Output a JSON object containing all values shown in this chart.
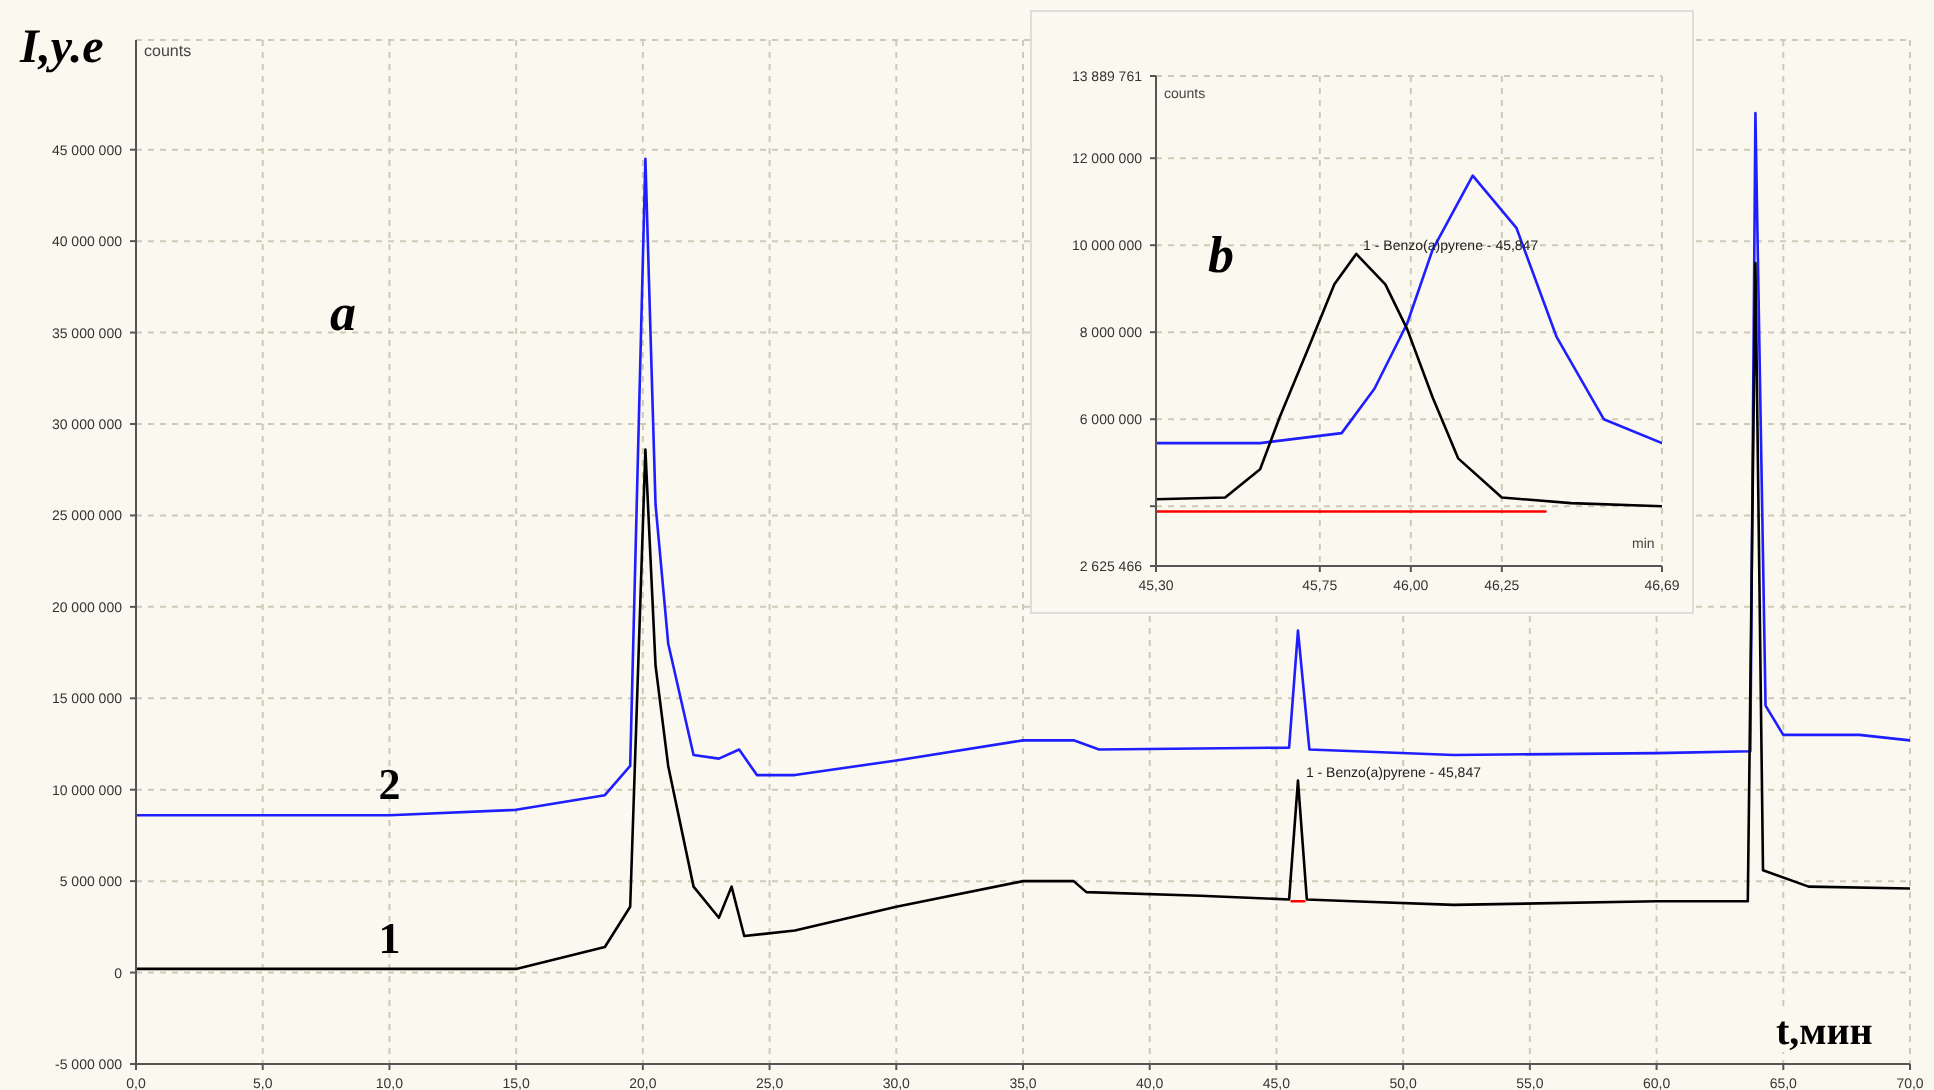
{
  "chart_data": [
    {
      "type": "line",
      "ylabel": "I,y.e",
      "xlabel": "t,мин",
      "xlim": [
        0,
        70
      ],
      "xticks": [
        {
          "value": 0,
          "label": "0,0"
        },
        {
          "value": 5,
          "label": "5,0"
        },
        {
          "value": 10,
          "label": "10,0"
        },
        {
          "value": 15,
          "label": "15,0"
        },
        {
          "value": 20,
          "label": "20,0"
        },
        {
          "value": 25,
          "label": "25,0"
        },
        {
          "value": 30,
          "label": "30,0"
        },
        {
          "value": 35,
          "label": "35,0"
        },
        {
          "value": 40,
          "label": "40,0"
        },
        {
          "value": 45,
          "label": "45,0"
        },
        {
          "value": 50,
          "label": "50,0"
        },
        {
          "value": 55,
          "label": "55,0"
        },
        {
          "value": 60,
          "label": "60,0"
        },
        {
          "value": 65,
          "label": "65,0"
        },
        {
          "value": 70,
          "label": "70,0"
        }
      ],
      "ylim": [
        -5000000,
        51000000
      ],
      "yticks": [
        {
          "value": -5000000,
          "label": "-5 000 000"
        },
        {
          "value": 0,
          "label": "0"
        },
        {
          "value": 5000000,
          "label": "5 000 000"
        },
        {
          "value": 10000000,
          "label": "10 000 000"
        },
        {
          "value": 15000000,
          "label": "15 000 000"
        },
        {
          "value": 20000000,
          "label": "20 000 000"
        },
        {
          "value": 25000000,
          "label": "25 000 000"
        },
        {
          "value": 30000000,
          "label": "30 000 000"
        },
        {
          "value": 35000000,
          "label": "35 000 000"
        },
        {
          "value": 40000000,
          "label": "40 000 000"
        },
        {
          "value": 45000000,
          "label": "45 000 000"
        }
      ],
      "grid": true,
      "series": [
        {
          "name": "2",
          "color": "#1e1eff",
          "x": [
            0,
            10,
            15,
            18.5,
            19.5,
            20.1,
            20.5,
            21,
            22,
            23,
            23.8,
            24.5,
            26,
            30,
            35,
            37,
            38,
            45.5,
            45.85,
            46.3,
            52,
            60,
            63.7,
            63.9,
            64.3,
            65,
            68,
            70
          ],
          "values": [
            8600000,
            8600000,
            8900000,
            9700000,
            11300000,
            44500000,
            25600000,
            18000000,
            11900000,
            11700000,
            12200000,
            10800000,
            10800000,
            11600000,
            12700000,
            12700000,
            12200000,
            12300000,
            18700000,
            12200000,
            11900000,
            12000000,
            12100000,
            47000000,
            14600000,
            13000000,
            13000000,
            12700000
          ]
        },
        {
          "name": "1",
          "color": "#000000",
          "x": [
            0,
            10,
            15,
            18.5,
            19.5,
            20.1,
            20.5,
            21,
            22,
            23,
            23.5,
            24,
            26,
            30,
            35,
            37,
            37.5,
            42,
            45.5,
            45.85,
            46.2,
            48,
            52,
            60,
            63.6,
            63.9,
            64.2,
            66,
            70
          ],
          "values": [
            200000,
            200000,
            200000,
            1400000,
            3600000,
            28600000,
            16800000,
            11300000,
            4700000,
            3000000,
            4700000,
            2000000,
            2300000,
            3600000,
            5000000,
            5000000,
            4400000,
            4200000,
            4000000,
            10500000,
            4000000,
            3900000,
            3700000,
            3900000,
            3900000,
            38800000,
            5600000,
            4700000,
            4600000
          ]
        },
        {
          "color": "#ff0000",
          "x": [
            45.6,
            46.1
          ],
          "values": [
            3900000,
            3900000
          ]
        }
      ],
      "annotations": [
        "a",
        "counts",
        {
          "text": "1 - Benzo(a)pyrene - 45,847",
          "x": 45.847,
          "y": 10500000
        }
      ]
    },
    {
      "type": "line",
      "ylabel": "counts",
      "xlabel": "min",
      "xlim": [
        45.3,
        46.69
      ],
      "xticks": [
        {
          "value": 45.3,
          "label": "45,30"
        },
        {
          "value": 45.75,
          "label": "45,75"
        },
        {
          "value": 46,
          "label": "46,00"
        },
        {
          "value": 46.25,
          "label": "46,25"
        },
        {
          "value": 46.69,
          "label": "46,69"
        }
      ],
      "ylim": [
        2625466,
        13889761
      ],
      "yticks": [
        {
          "value": 2625466,
          "label": "2 625 466"
        },
        {
          "value": 4000000,
          "label": null
        },
        {
          "value": 6000000,
          "label": "6 000 000"
        },
        {
          "value": 8000000,
          "label": "8 000 000"
        },
        {
          "value": 10000000,
          "label": "10 000 000"
        },
        {
          "value": 12000000,
          "label": "12 000 000"
        },
        {
          "value": 13889761,
          "label": "13 889 761"
        }
      ],
      "grid": true,
      "series": [
        {
          "color": "#1e1eff",
          "x": [
            45.3,
            45.586,
            45.81,
            45.9,
            45.99,
            46.06,
            46.17,
            46.29,
            46.4,
            46.53,
            46.69
          ],
          "values": [
            5450000,
            5450000,
            5680000,
            6700000,
            8200000,
            9900000,
            11600000,
            10400000,
            7900000,
            6000000,
            5450000
          ]
        },
        {
          "color": "#000000",
          "x": [
            45.3,
            45.49,
            45.586,
            45.64,
            45.717,
            45.79,
            45.85,
            45.93,
            45.99,
            46.06,
            46.13,
            46.25,
            46.44,
            46.69
          ],
          "values": [
            4160000,
            4200000,
            4850000,
            6050000,
            7600000,
            9100000,
            9800000,
            9100000,
            8070000,
            6500000,
            5100000,
            4200000,
            4070000,
            4000000
          ]
        },
        {
          "color": "#ff0000",
          "x": [
            45.3,
            46.37
          ],
          "values": [
            3880000,
            3880000
          ]
        }
      ],
      "annotations": [
        "b",
        {
          "text": "1 - Benzo(a)pyrene - 45,847",
          "x": 45.847,
          "y": 9800000
        }
      ]
    }
  ]
}
